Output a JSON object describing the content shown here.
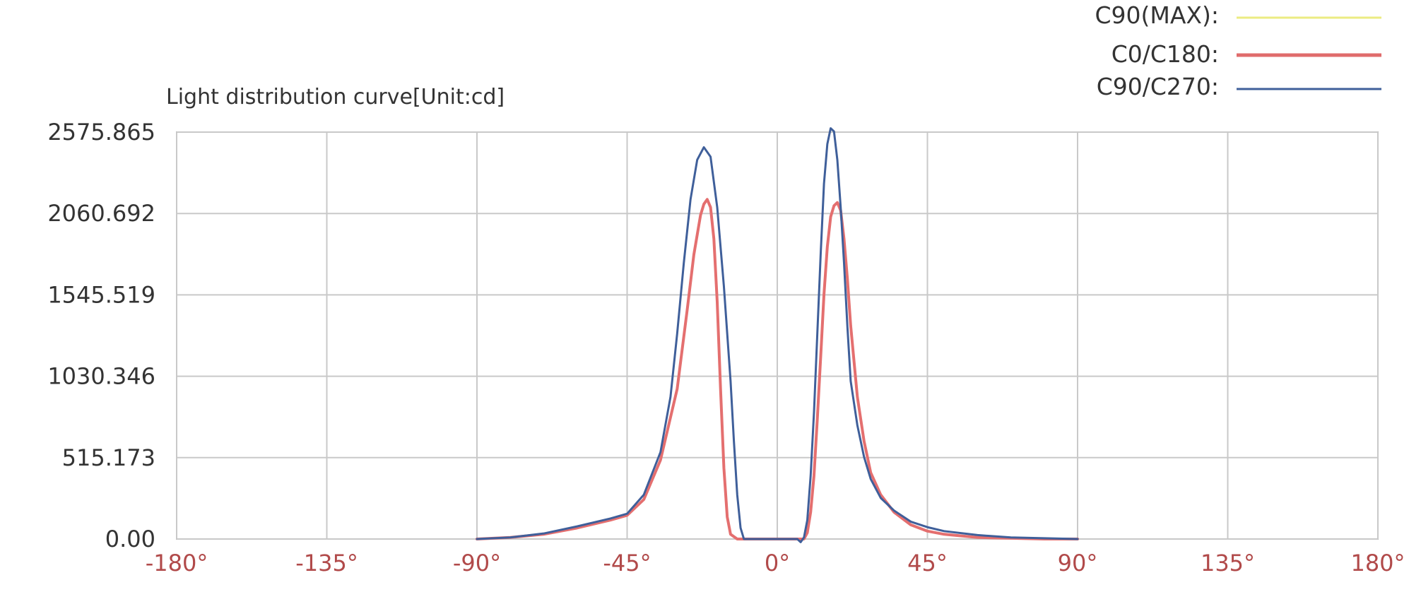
{
  "chart_data": {
    "type": "line",
    "title": "Light distribution curve[Unit:cd]",
    "xlabel": "",
    "ylabel": "",
    "xlim": [
      -180,
      180
    ],
    "ylim": [
      0,
      2575.865
    ],
    "x_ticks": [
      "-180°",
      "-135°",
      "-90°",
      "-45°",
      "0°",
      "45°",
      "90°",
      "135°",
      "180°"
    ],
    "y_ticks": [
      "0.00",
      "515.173",
      "1030.346",
      "1545.519",
      "2060.692",
      "2575.865"
    ],
    "grid": true,
    "legend_position": "top-right",
    "legend": [
      {
        "label": "C90(MAX):",
        "color": "#ecec82"
      },
      {
        "label": "C0/C180:",
        "color": "#e06c6c"
      },
      {
        "label": "C90/C270:",
        "color": "#3f5f9a"
      }
    ],
    "tick_label_color_x": "#b14a4a",
    "series": [
      {
        "name": "C0/C180",
        "color": "#e46f6f",
        "points": [
          [
            -90,
            0
          ],
          [
            -80,
            10
          ],
          [
            -70,
            30
          ],
          [
            -60,
            70
          ],
          [
            -50,
            120
          ],
          [
            -45,
            150
          ],
          [
            -40,
            250
          ],
          [
            -35,
            500
          ],
          [
            -30,
            950
          ],
          [
            -27,
            1450
          ],
          [
            -25,
            1800
          ],
          [
            -23,
            2050
          ],
          [
            -22,
            2120
          ],
          [
            -21,
            2150
          ],
          [
            -20,
            2100
          ],
          [
            -19,
            1900
          ],
          [
            -18,
            1500
          ],
          [
            -17,
            950
          ],
          [
            -16,
            450
          ],
          [
            -15,
            140
          ],
          [
            -14,
            30
          ],
          [
            -12,
            0
          ],
          [
            0,
            0
          ],
          [
            5,
            0
          ],
          [
            8,
            0
          ],
          [
            9,
            40
          ],
          [
            10,
            170
          ],
          [
            11,
            400
          ],
          [
            12,
            760
          ],
          [
            13,
            1150
          ],
          [
            14,
            1550
          ],
          [
            15,
            1850
          ],
          [
            16,
            2040
          ],
          [
            17,
            2110
          ],
          [
            18,
            2130
          ],
          [
            19,
            2080
          ],
          [
            20,
            1900
          ],
          [
            21,
            1650
          ],
          [
            22,
            1350
          ],
          [
            24,
            900
          ],
          [
            26,
            620
          ],
          [
            28,
            420
          ],
          [
            31,
            280
          ],
          [
            35,
            170
          ],
          [
            40,
            90
          ],
          [
            45,
            50
          ],
          [
            50,
            30
          ],
          [
            60,
            10
          ],
          [
            70,
            5
          ],
          [
            80,
            0
          ],
          [
            90,
            0
          ]
        ]
      },
      {
        "name": "C90/C270",
        "color": "#3f5f9a",
        "points": [
          [
            -90,
            0
          ],
          [
            -80,
            10
          ],
          [
            -70,
            35
          ],
          [
            -60,
            80
          ],
          [
            -50,
            130
          ],
          [
            -45,
            160
          ],
          [
            -40,
            280
          ],
          [
            -35,
            550
          ],
          [
            -32,
            900
          ],
          [
            -30,
            1300
          ],
          [
            -28,
            1750
          ],
          [
            -26,
            2150
          ],
          [
            -24,
            2400
          ],
          [
            -22,
            2480
          ],
          [
            -20,
            2420
          ],
          [
            -18,
            2100
          ],
          [
            -16,
            1600
          ],
          [
            -14,
            1000
          ],
          [
            -13,
            620
          ],
          [
            -12,
            280
          ],
          [
            -11,
            70
          ],
          [
            -10,
            0
          ],
          [
            0,
            0
          ],
          [
            5,
            0
          ],
          [
            6,
            0
          ],
          [
            7,
            -20
          ],
          [
            8,
            10
          ],
          [
            9,
            120
          ],
          [
            10,
            400
          ],
          [
            11,
            800
          ],
          [
            12,
            1300
          ],
          [
            13,
            1800
          ],
          [
            14,
            2250
          ],
          [
            15,
            2500
          ],
          [
            16,
            2600
          ],
          [
            17,
            2580
          ],
          [
            18,
            2400
          ],
          [
            19,
            2100
          ],
          [
            20,
            1750
          ],
          [
            21,
            1350
          ],
          [
            22,
            1000
          ],
          [
            24,
            720
          ],
          [
            26,
            520
          ],
          [
            28,
            380
          ],
          [
            31,
            260
          ],
          [
            35,
            180
          ],
          [
            40,
            110
          ],
          [
            45,
            75
          ],
          [
            50,
            50
          ],
          [
            60,
            25
          ],
          [
            70,
            10
          ],
          [
            80,
            5
          ],
          [
            90,
            0
          ]
        ]
      }
    ]
  }
}
